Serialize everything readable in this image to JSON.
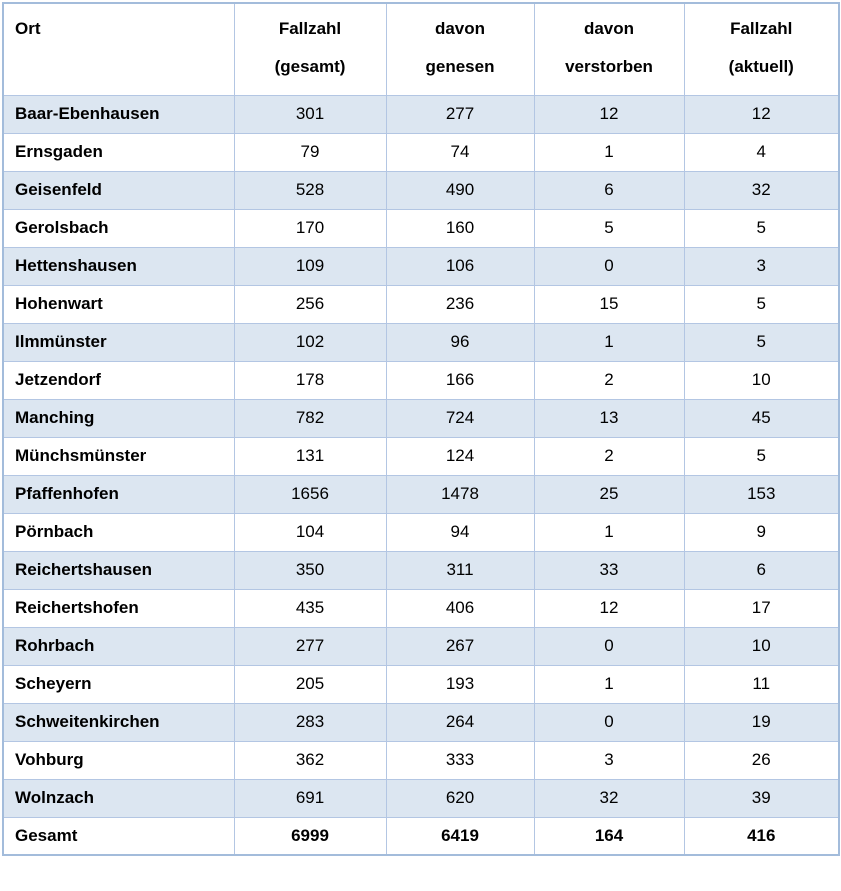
{
  "table": {
    "title_semantic": "Fallzahlen je Ort",
    "header_cols": [
      {
        "line1": "",
        "line2": "Ort"
      },
      {
        "line1": "Fallzahl",
        "line2": "(gesamt)"
      },
      {
        "line1": "davon",
        "line2": "genesen"
      },
      {
        "line1": "davon",
        "line2": "verstorben"
      },
      {
        "line1": "Fallzahl",
        "line2": "(aktuell)"
      }
    ],
    "columns": [
      "Ort",
      "Fallzahl (gesamt)",
      "davon genesen",
      "davon verstorben",
      "Fallzahl (aktuell)"
    ],
    "rows": [
      {
        "ort": "Baar-Ebenhausen",
        "gesamt": 301,
        "genesen": 277,
        "verstorben": 12,
        "aktuell": 12
      },
      {
        "ort": "Ernsgaden",
        "gesamt": 79,
        "genesen": 74,
        "verstorben": 1,
        "aktuell": 4
      },
      {
        "ort": "Geisenfeld",
        "gesamt": 528,
        "genesen": 490,
        "verstorben": 6,
        "aktuell": 32
      },
      {
        "ort": "Gerolsbach",
        "gesamt": 170,
        "genesen": 160,
        "verstorben": 5,
        "aktuell": 5
      },
      {
        "ort": "Hettenshausen",
        "gesamt": 109,
        "genesen": 106,
        "verstorben": 0,
        "aktuell": 3
      },
      {
        "ort": "Hohenwart",
        "gesamt": 256,
        "genesen": 236,
        "verstorben": 15,
        "aktuell": 5
      },
      {
        "ort": "Ilmmünster",
        "gesamt": 102,
        "genesen": 96,
        "verstorben": 1,
        "aktuell": 5
      },
      {
        "ort": "Jetzendorf",
        "gesamt": 178,
        "genesen": 166,
        "verstorben": 2,
        "aktuell": 10
      },
      {
        "ort": "Manching",
        "gesamt": 782,
        "genesen": 724,
        "verstorben": 13,
        "aktuell": 45
      },
      {
        "ort": "Münchsmünster",
        "gesamt": 131,
        "genesen": 124,
        "verstorben": 2,
        "aktuell": 5
      },
      {
        "ort": "Pfaffenhofen",
        "gesamt": 1656,
        "genesen": 1478,
        "verstorben": 25,
        "aktuell": 153
      },
      {
        "ort": "Pörnbach",
        "gesamt": 104,
        "genesen": 94,
        "verstorben": 1,
        "aktuell": 9
      },
      {
        "ort": "Reichertshausen",
        "gesamt": 350,
        "genesen": 311,
        "verstorben": 33,
        "aktuell": 6
      },
      {
        "ort": "Reichertshofen",
        "gesamt": 435,
        "genesen": 406,
        "verstorben": 12,
        "aktuell": 17
      },
      {
        "ort": "Rohrbach",
        "gesamt": 277,
        "genesen": 267,
        "verstorben": 0,
        "aktuell": 10
      },
      {
        "ort": "Scheyern",
        "gesamt": 205,
        "genesen": 193,
        "verstorben": 1,
        "aktuell": 11
      },
      {
        "ort": "Schweitenkirchen",
        "gesamt": 283,
        "genesen": 264,
        "verstorben": 0,
        "aktuell": 19
      },
      {
        "ort": "Vohburg",
        "gesamt": 362,
        "genesen": 333,
        "verstorben": 3,
        "aktuell": 26
      },
      {
        "ort": "Wolnzach",
        "gesamt": 691,
        "genesen": 620,
        "verstorben": 32,
        "aktuell": 39
      }
    ],
    "total_row": {
      "ort": "Gesamt",
      "gesamt": 6999,
      "genesen": 6419,
      "verstorben": 164,
      "aktuell": 416
    },
    "colors": {
      "row_shade": "#dce6f1",
      "row_plain": "#ffffff",
      "border": "#b3c6e3",
      "outer_border": "#a3bcdb",
      "text": "#000000"
    }
  }
}
